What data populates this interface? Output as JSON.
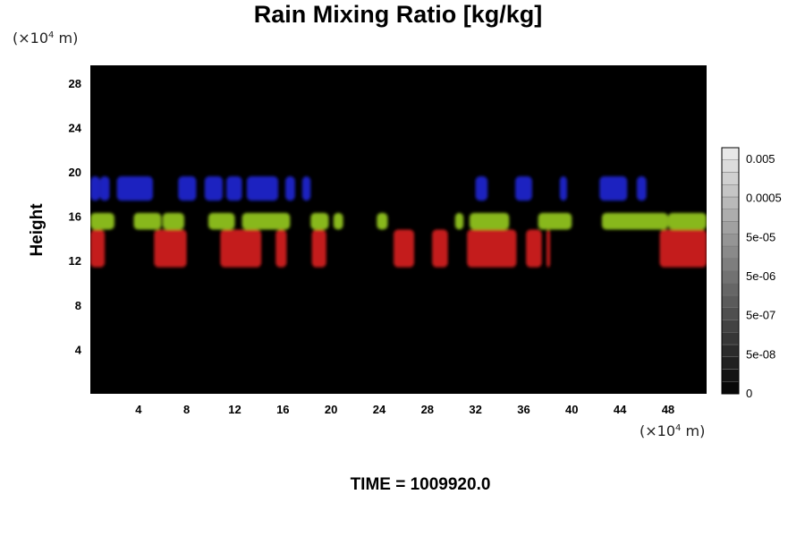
{
  "chart_data": {
    "type": "heatmap",
    "title": "Rain Mixing Ratio [kg/kg]",
    "ylabel": "Height",
    "x_unit": {
      "prefix": "(×10",
      "exponent": "4",
      "suffix": " m)"
    },
    "y_unit": {
      "prefix": "(×10",
      "exponent": "4",
      "suffix": " m)"
    },
    "xlim": [
      0,
      51.2
    ],
    "ylim": [
      0,
      29.6
    ],
    "x_ticks": [
      "4",
      "8",
      "12",
      "16",
      "20",
      "24",
      "28",
      "32",
      "36",
      "40",
      "44",
      "48"
    ],
    "y_ticks": [
      "4",
      "8",
      "12",
      "16",
      "20",
      "24",
      "28"
    ],
    "background_color": "#000000",
    "colorbar": {
      "labels": [
        "0",
        "5e-08",
        "5e-07",
        "5e-06",
        "5e-05",
        "0.0005",
        "0.005"
      ],
      "levels": 20
    },
    "bands": [
      {
        "name": "upper",
        "color": "#1a22c0",
        "y_range": [
          17.4,
          19.6
        ],
        "x_segments": [
          [
            0,
            0.8
          ],
          [
            0.8,
            1.6
          ],
          [
            2.2,
            5.2
          ],
          [
            7.3,
            8.8
          ],
          [
            9.5,
            11.0
          ],
          [
            11.3,
            12.6
          ],
          [
            13.0,
            15.6
          ],
          [
            16.2,
            17.0
          ],
          [
            17.6,
            18.3
          ],
          [
            32.0,
            33.0
          ],
          [
            35.3,
            36.7
          ],
          [
            39.0,
            39.6
          ],
          [
            42.3,
            44.6
          ],
          [
            45.4,
            46.2
          ]
        ]
      },
      {
        "name": "middle",
        "color": "#88b81c",
        "y_range": [
          14.8,
          16.3
        ],
        "x_segments": [
          [
            0,
            2.0
          ],
          [
            3.6,
            5.9
          ],
          [
            6.0,
            7.8
          ],
          [
            9.8,
            12.0
          ],
          [
            12.6,
            16.6
          ],
          [
            18.3,
            19.8
          ],
          [
            20.2,
            21.0
          ],
          [
            23.8,
            24.7
          ],
          [
            30.3,
            31.0
          ],
          [
            31.5,
            34.8
          ],
          [
            37.2,
            40.0
          ],
          [
            42.5,
            48.0
          ],
          [
            48.0,
            51.2
          ]
        ]
      },
      {
        "name": "lower",
        "color": "#c41c1c",
        "y_range": [
          11.4,
          14.8
        ],
        "x_segments": [
          [
            0,
            1.2
          ],
          [
            5.3,
            8.0
          ],
          [
            10.8,
            14.2
          ],
          [
            15.4,
            16.3
          ],
          [
            18.4,
            19.6
          ],
          [
            25.2,
            26.9
          ],
          [
            28.4,
            29.7
          ],
          [
            31.3,
            35.4
          ],
          [
            36.2,
            37.5
          ],
          [
            37.9,
            38.2
          ],
          [
            47.3,
            51.2
          ]
        ]
      }
    ]
  },
  "footer": {
    "time": "TIME = 1009920.0"
  }
}
